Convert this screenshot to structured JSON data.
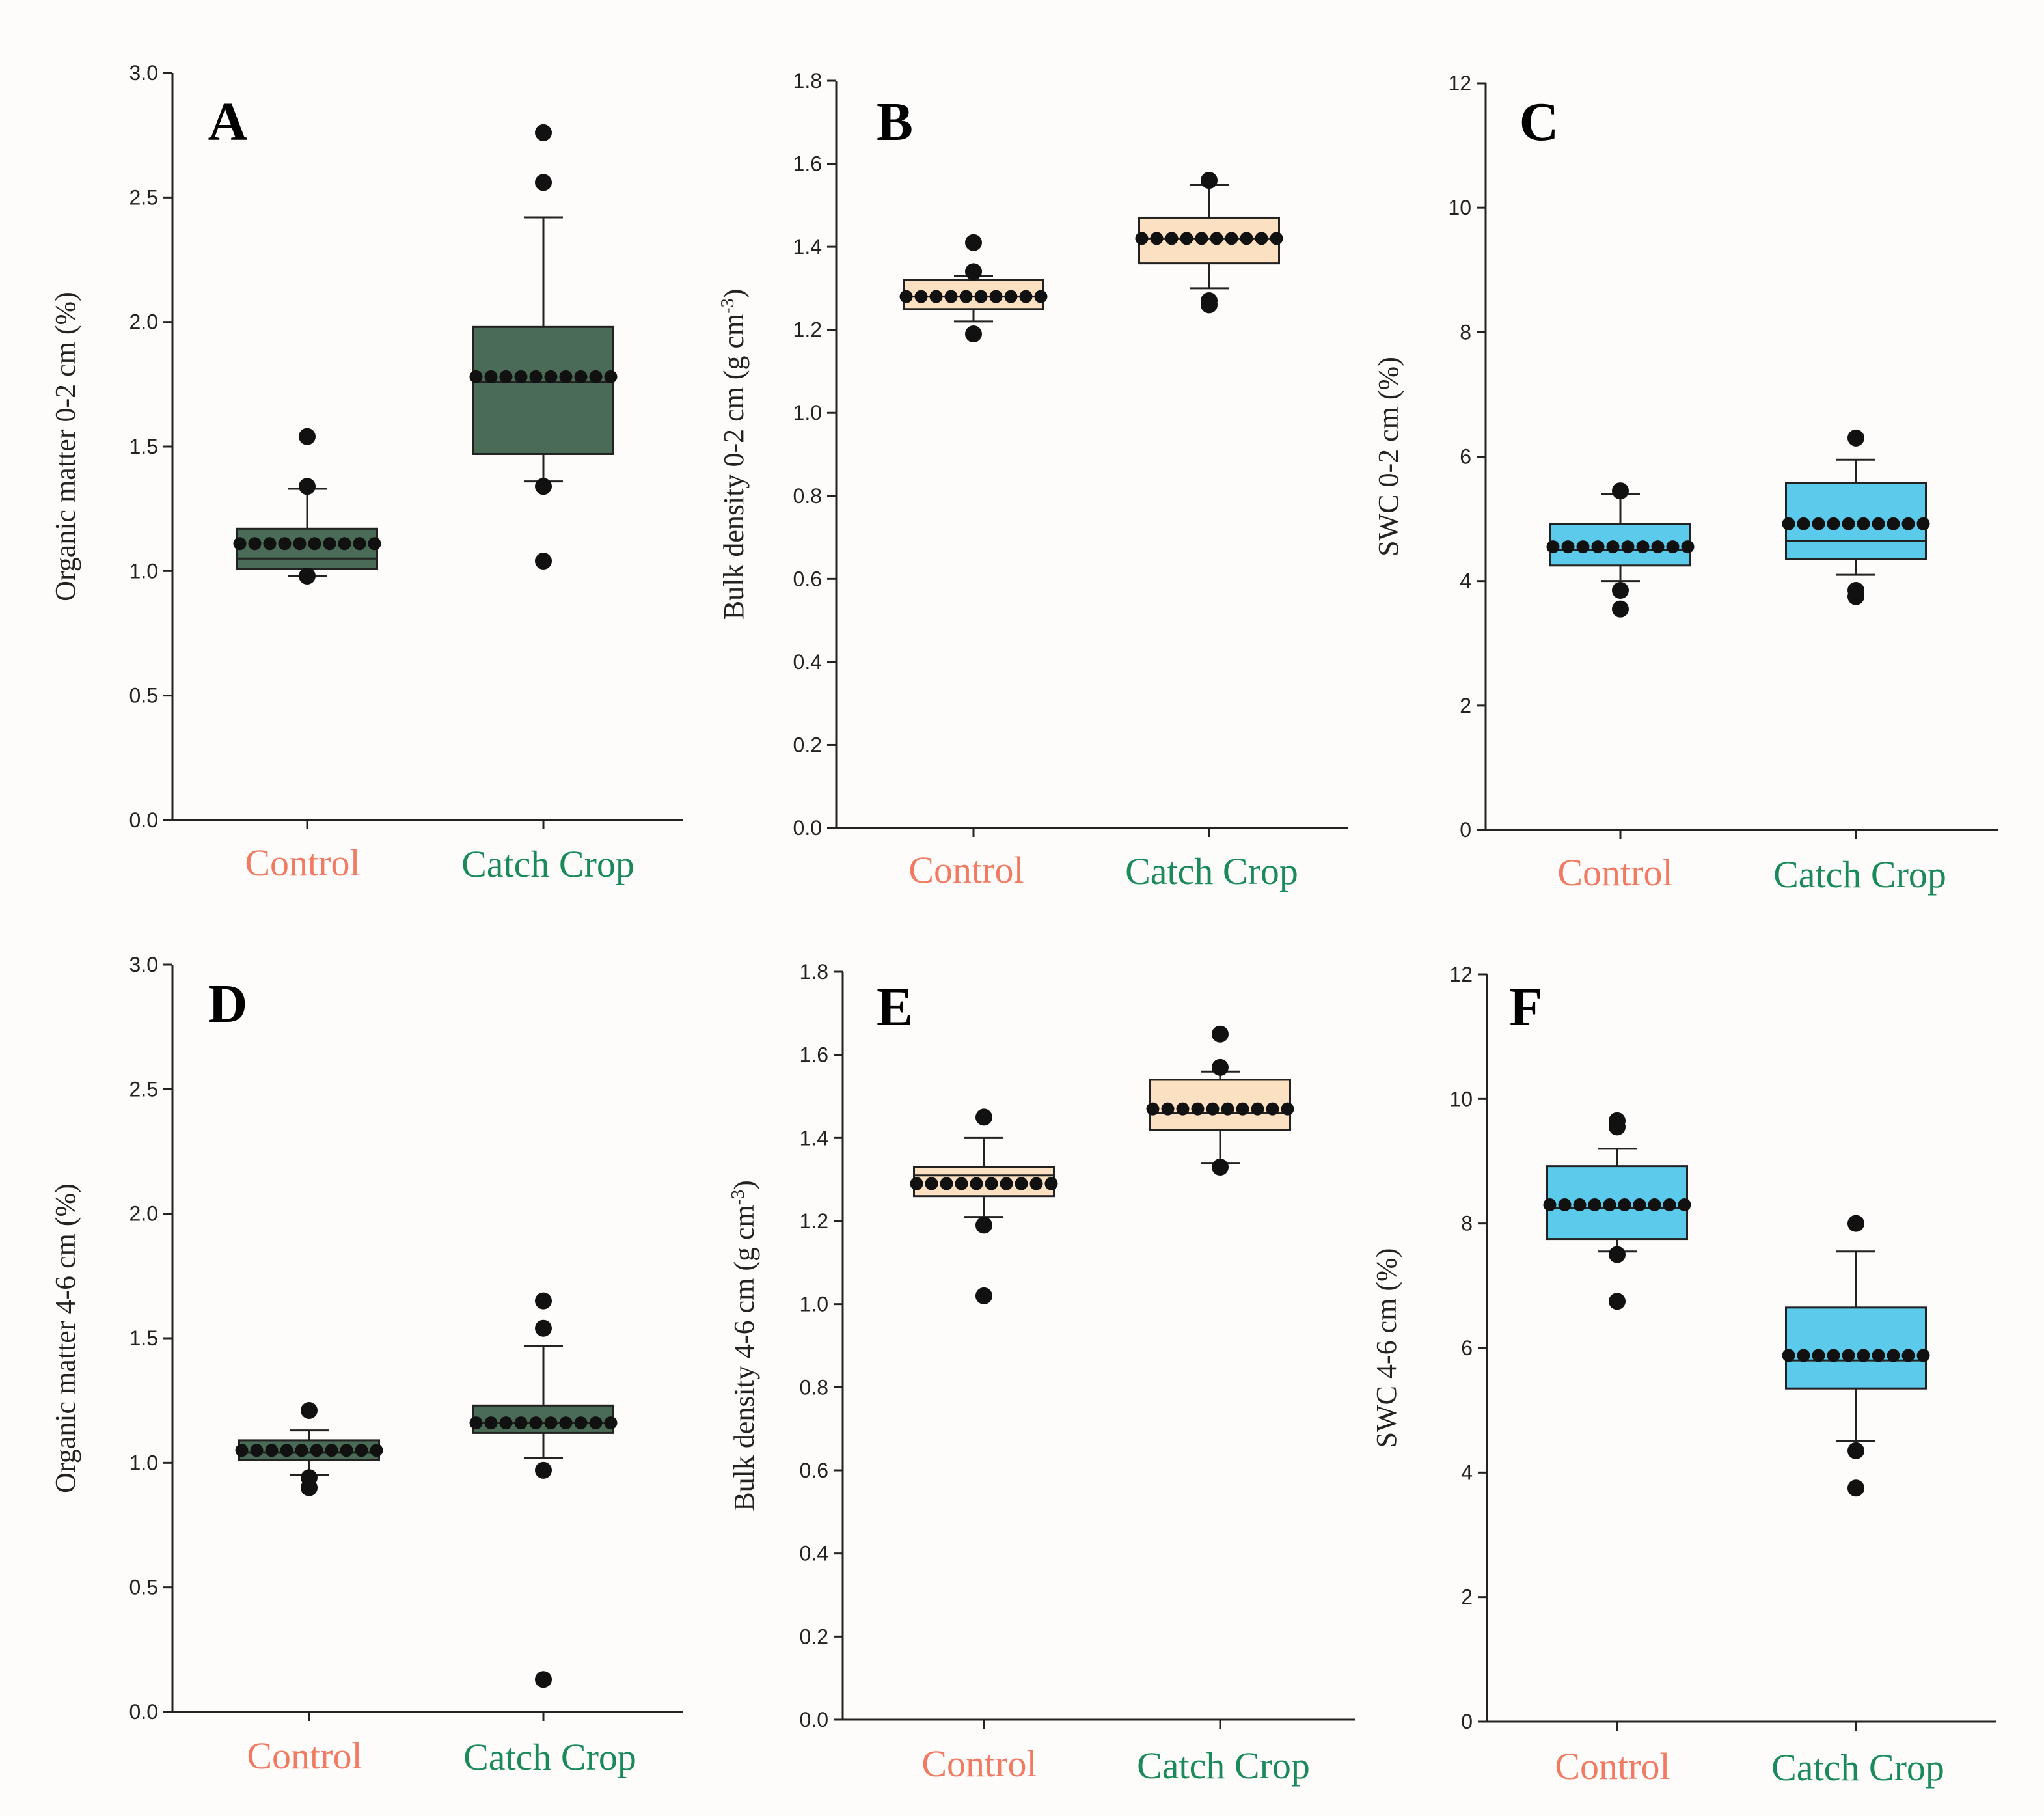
{
  "colors": {
    "control_label": "#f07b62",
    "catch_label": "#1a8a5a",
    "organic_box": "#4a6b55",
    "bulk_box": "#fbe1c2",
    "swc_box": "#5ccbeb",
    "axis": "#222222",
    "dot": "#111111"
  },
  "chart_data": [
    {
      "panel": "A",
      "type": "box",
      "ylabel": "Organic matter 0-2 cm (%)",
      "ylim": [
        0,
        3.0
      ],
      "yticks": [
        "0.0",
        "0.5",
        "1.0",
        "1.5",
        "2.0",
        "2.5",
        "3.0"
      ],
      "box_color_key": "organic_box",
      "categories": [
        "Control",
        "Catch Crop"
      ],
      "groups": [
        {
          "name": "Control",
          "q1": 1.01,
          "median": 1.05,
          "q3": 1.17,
          "whisker_low": 0.98,
          "whisker_high": 1.33,
          "mean": 1.11,
          "outliers": [
            0.98,
            1.34,
            1.54
          ]
        },
        {
          "name": "Catch Crop",
          "q1": 1.47,
          "median": 1.76,
          "q3": 1.98,
          "whisker_low": 1.36,
          "whisker_high": 2.42,
          "mean": 1.78,
          "outliers": [
            1.04,
            1.34,
            2.56,
            2.76
          ]
        }
      ]
    },
    {
      "panel": "B",
      "type": "box",
      "ylabel": "Bulk density  0-2 cm (g cm",
      "ylabel_sup": "-3",
      "ylabel_end": ")",
      "ylim": [
        0,
        1.8
      ],
      "yticks": [
        "0.0",
        "0.2",
        "0.4",
        "0.6",
        "0.8",
        "1.0",
        "1.2",
        "1.4",
        "1.6",
        "1.8"
      ],
      "box_color_key": "bulk_box",
      "categories": [
        "Control",
        "Catch Crop"
      ],
      "groups": [
        {
          "name": "Control",
          "q1": 1.25,
          "median": 1.28,
          "q3": 1.32,
          "whisker_low": 1.22,
          "whisker_high": 1.33,
          "mean": 1.28,
          "outliers": [
            1.19,
            1.34,
            1.41
          ]
        },
        {
          "name": "Catch Crop",
          "q1": 1.36,
          "median": 1.42,
          "q3": 1.47,
          "whisker_low": 1.3,
          "whisker_high": 1.55,
          "mean": 1.42,
          "outliers": [
            1.26,
            1.27,
            1.56
          ]
        }
      ]
    },
    {
      "panel": "C",
      "type": "box",
      "ylabel": "SWC  0-2 cm (%)",
      "ylim": [
        0,
        12
      ],
      "yticks": [
        "0",
        "2",
        "4",
        "6",
        "8",
        "10",
        "12"
      ],
      "box_color_key": "swc_box",
      "categories": [
        "Control",
        "Catch Crop"
      ],
      "groups": [
        {
          "name": "Control",
          "q1": 4.25,
          "median": 4.5,
          "q3": 4.92,
          "whisker_low": 4.0,
          "whisker_high": 5.4,
          "mean": 4.55,
          "outliers": [
            3.55,
            3.85,
            5.45
          ]
        },
        {
          "name": "Catch Crop",
          "q1": 4.35,
          "median": 4.65,
          "q3": 5.58,
          "whisker_low": 4.1,
          "whisker_high": 5.95,
          "mean": 4.92,
          "outliers": [
            3.75,
            3.85,
            6.3
          ]
        }
      ]
    },
    {
      "panel": "D",
      "type": "box",
      "ylabel": "Organic matter  4-6 cm (%)",
      "ylim": [
        0,
        3.0
      ],
      "yticks": [
        "0.0",
        "0.5",
        "1.0",
        "1.5",
        "2.0",
        "2.5",
        "3.0"
      ],
      "box_color_key": "organic_box",
      "categories": [
        "Control",
        "Catch Crop"
      ],
      "groups": [
        {
          "name": "Control",
          "q1": 1.01,
          "median": 1.04,
          "q3": 1.09,
          "whisker_low": 0.95,
          "whisker_high": 1.13,
          "mean": 1.05,
          "outliers": [
            0.9,
            0.94,
            1.21
          ]
        },
        {
          "name": "Catch Crop",
          "q1": 1.12,
          "median": 1.16,
          "q3": 1.23,
          "whisker_low": 1.02,
          "whisker_high": 1.47,
          "mean": 1.16,
          "outliers": [
            0.13,
            0.97,
            1.54,
            1.65
          ]
        }
      ]
    },
    {
      "panel": "E",
      "type": "box",
      "ylabel": "Bulk density  4-6 cm (g cm",
      "ylabel_sup": "-3",
      "ylabel_end": ")",
      "ylim": [
        0,
        1.8
      ],
      "yticks": [
        "0.0",
        "0.2",
        "0.4",
        "0.6",
        "0.8",
        "1.0",
        "1.2",
        "1.4",
        "1.6",
        "1.8"
      ],
      "box_color_key": "bulk_box",
      "categories": [
        "Control",
        "Catch Crop"
      ],
      "groups": [
        {
          "name": "Control",
          "q1": 1.26,
          "median": 1.31,
          "q3": 1.33,
          "whisker_low": 1.21,
          "whisker_high": 1.4,
          "mean": 1.29,
          "outliers": [
            1.02,
            1.19,
            1.45
          ]
        },
        {
          "name": "Catch Crop",
          "q1": 1.42,
          "median": 1.46,
          "q3": 1.54,
          "whisker_low": 1.34,
          "whisker_high": 1.56,
          "mean": 1.47,
          "outliers": [
            1.33,
            1.57,
            1.65
          ]
        }
      ]
    },
    {
      "panel": "F",
      "type": "box",
      "ylabel": "SWC  4-6 cm (%)",
      "ylim": [
        0,
        12
      ],
      "yticks": [
        "0",
        "2",
        "4",
        "6",
        "8",
        "10",
        "12"
      ],
      "box_color_key": "swc_box",
      "categories": [
        "Control",
        "Catch Crop"
      ],
      "groups": [
        {
          "name": "Control",
          "q1": 7.75,
          "median": 8.25,
          "q3": 8.92,
          "whisker_low": 7.55,
          "whisker_high": 9.2,
          "mean": 8.3,
          "outliers": [
            6.75,
            7.5,
            9.55,
            9.65
          ]
        },
        {
          "name": "Catch Crop",
          "q1": 5.35,
          "median": 5.8,
          "q3": 6.65,
          "whisker_low": 4.5,
          "whisker_high": 7.55,
          "mean": 5.88,
          "outliers": [
            3.75,
            4.35,
            8.0
          ]
        }
      ]
    }
  ]
}
